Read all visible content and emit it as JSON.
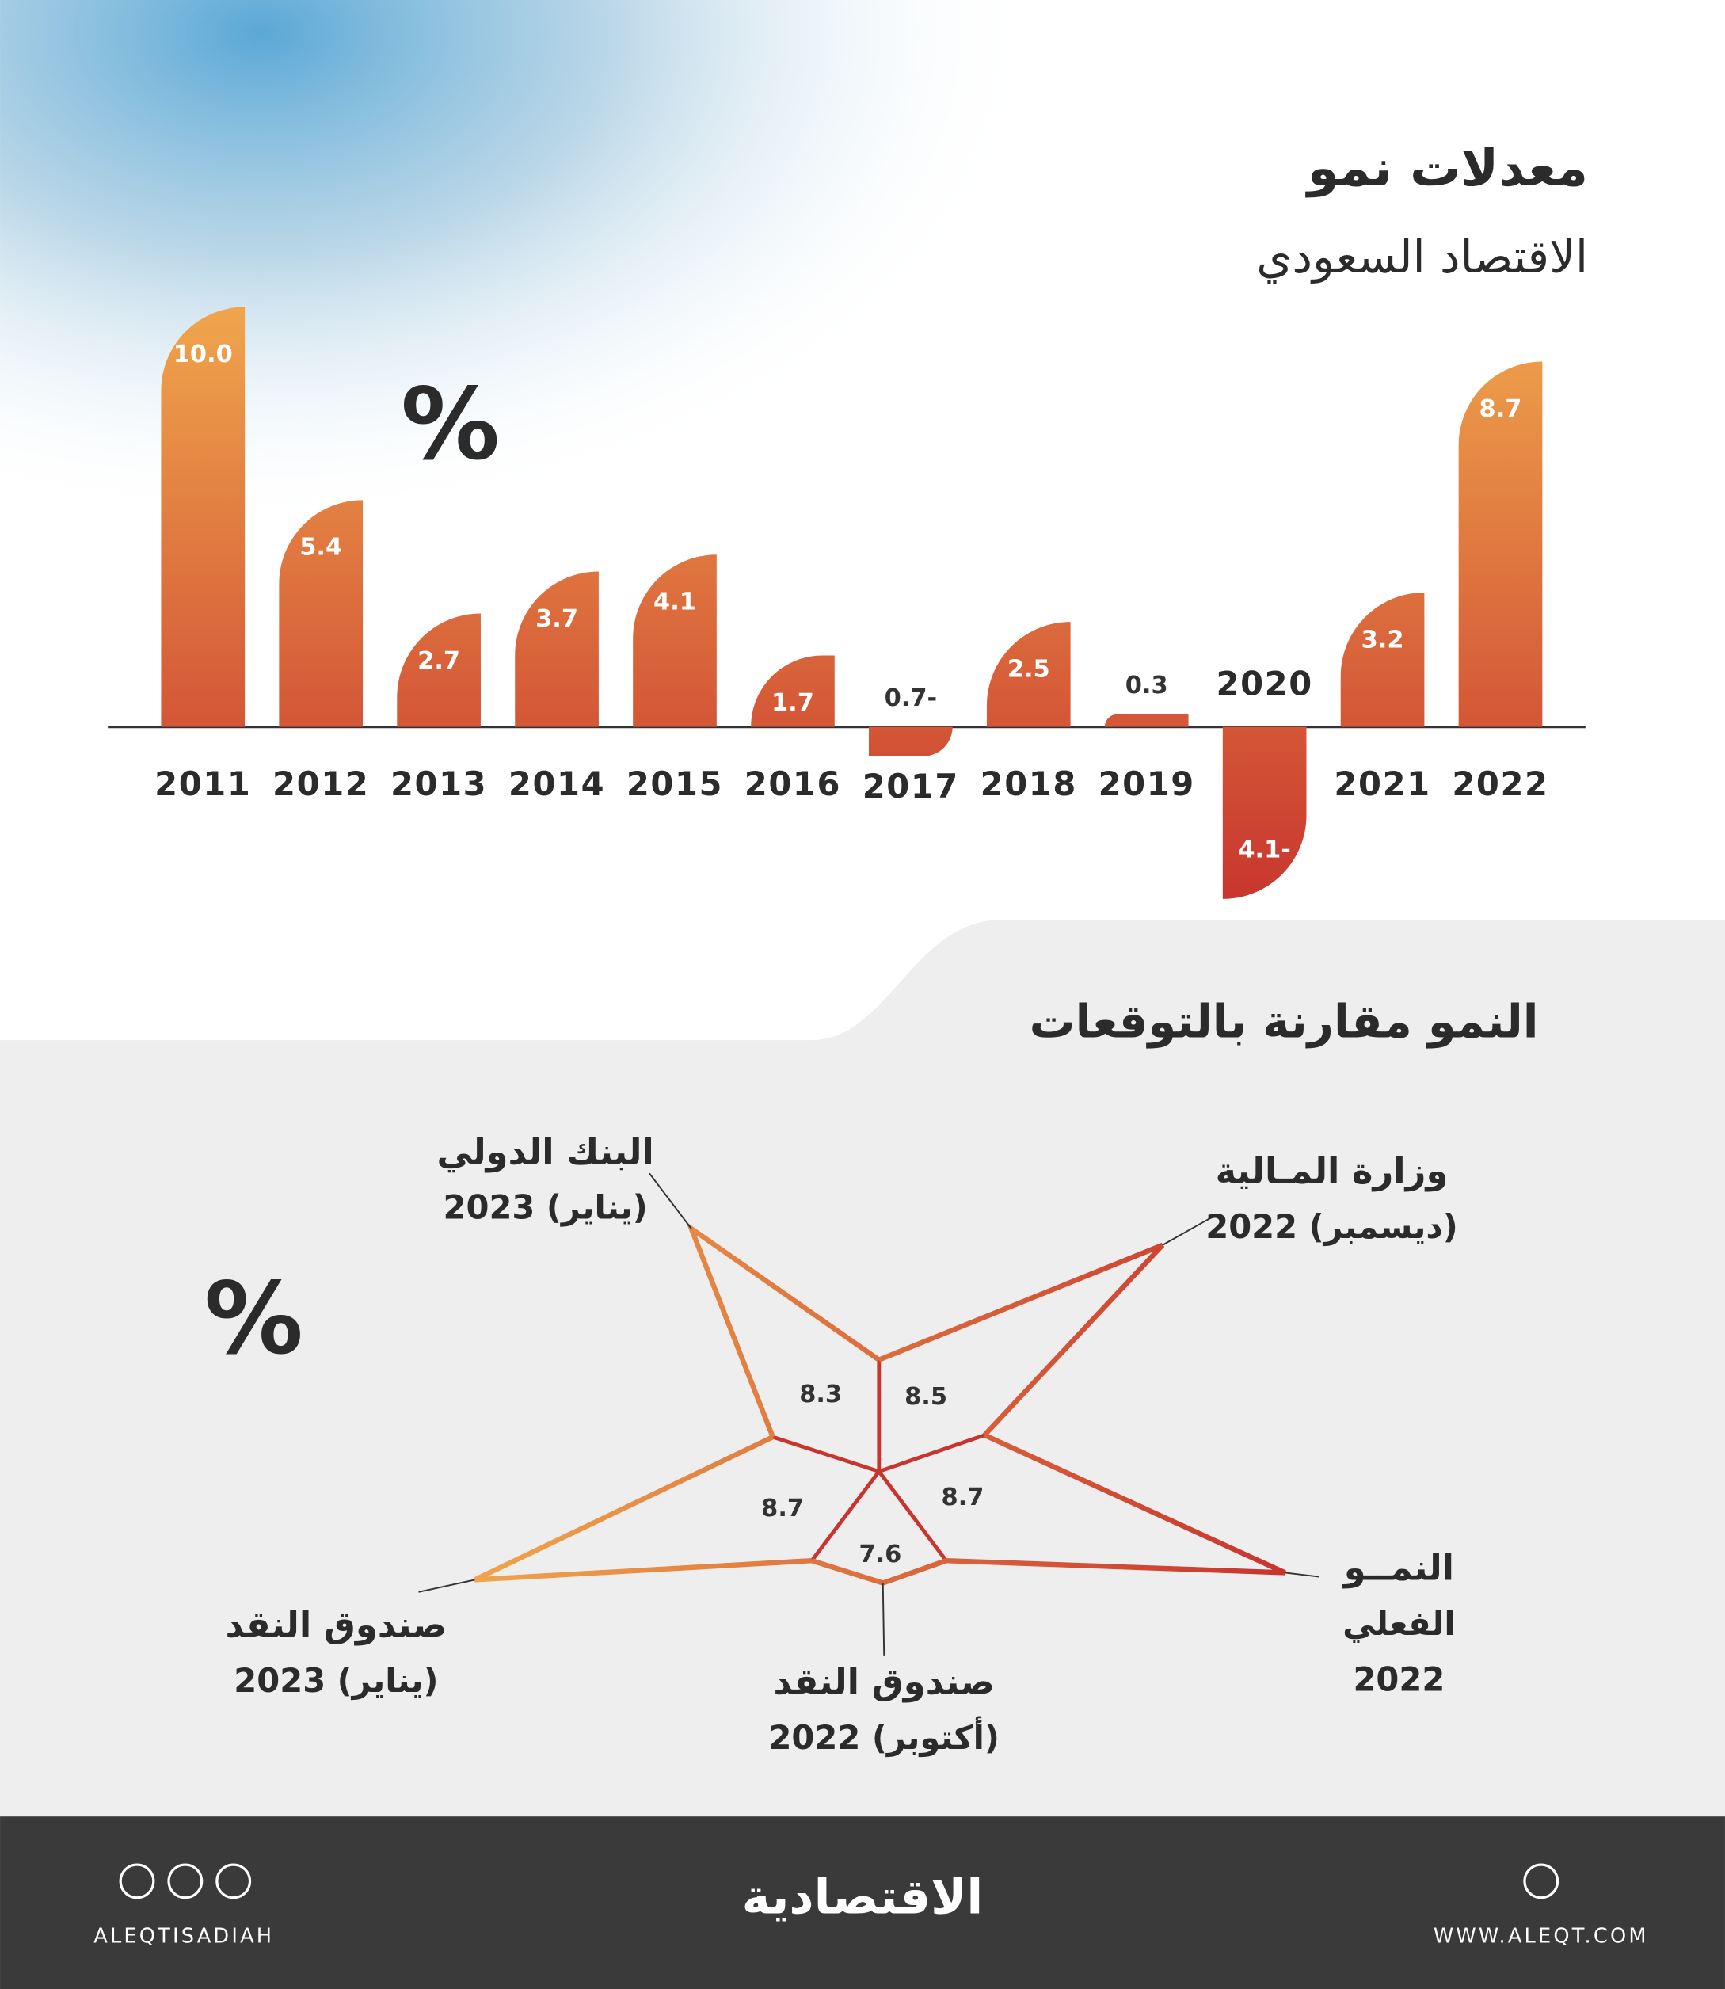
{
  "chart_data": [
    {
      "type": "bar",
      "title": "معدلات نمو",
      "subtitle": "الاقتصاد السعودي",
      "unit": "%",
      "categories": [
        "2011",
        "2012",
        "2013",
        "2014",
        "2015",
        "2016",
        "2017",
        "2018",
        "2019",
        "2020",
        "2021",
        "2022"
      ],
      "values": [
        10.0,
        5.4,
        2.7,
        3.7,
        4.1,
        1.7,
        -0.7,
        2.5,
        0.3,
        -4.1,
        3.2,
        8.7
      ],
      "value_labels": [
        "10.0",
        "5.4",
        "2.7",
        "3.7",
        "4.1",
        "1.7",
        "0.7-",
        "2.5",
        "0.3",
        "4.1-",
        "3.2",
        "8.7"
      ],
      "colors": [
        "#f0a64c",
        "#c8352e"
      ]
    },
    {
      "type": "star",
      "title": "النمو مقارنة بالتوقعات",
      "unit": "%",
      "categories": [
        [
          "وزارة المـالية",
          "(ديسمبر) 2022"
        ],
        [
          "البنك الدولي",
          "(يناير) 2023"
        ],
        [
          "صندوق النقد",
          "(يناير) 2023"
        ],
        [
          "صندوق النقد",
          "(أكتوبر) 2022"
        ],
        [
          "النمــو",
          "الفعلي",
          "2022"
        ]
      ],
      "values": [
        8.5,
        8.3,
        8.7,
        7.6,
        8.7
      ],
      "colors": [
        "#f0a64c",
        "#c8352e"
      ]
    }
  ],
  "footer": {
    "logo": "الاقتصادية",
    "handle": "ALEQTISADIAH",
    "website": "WWW.ALEQT.COM"
  }
}
